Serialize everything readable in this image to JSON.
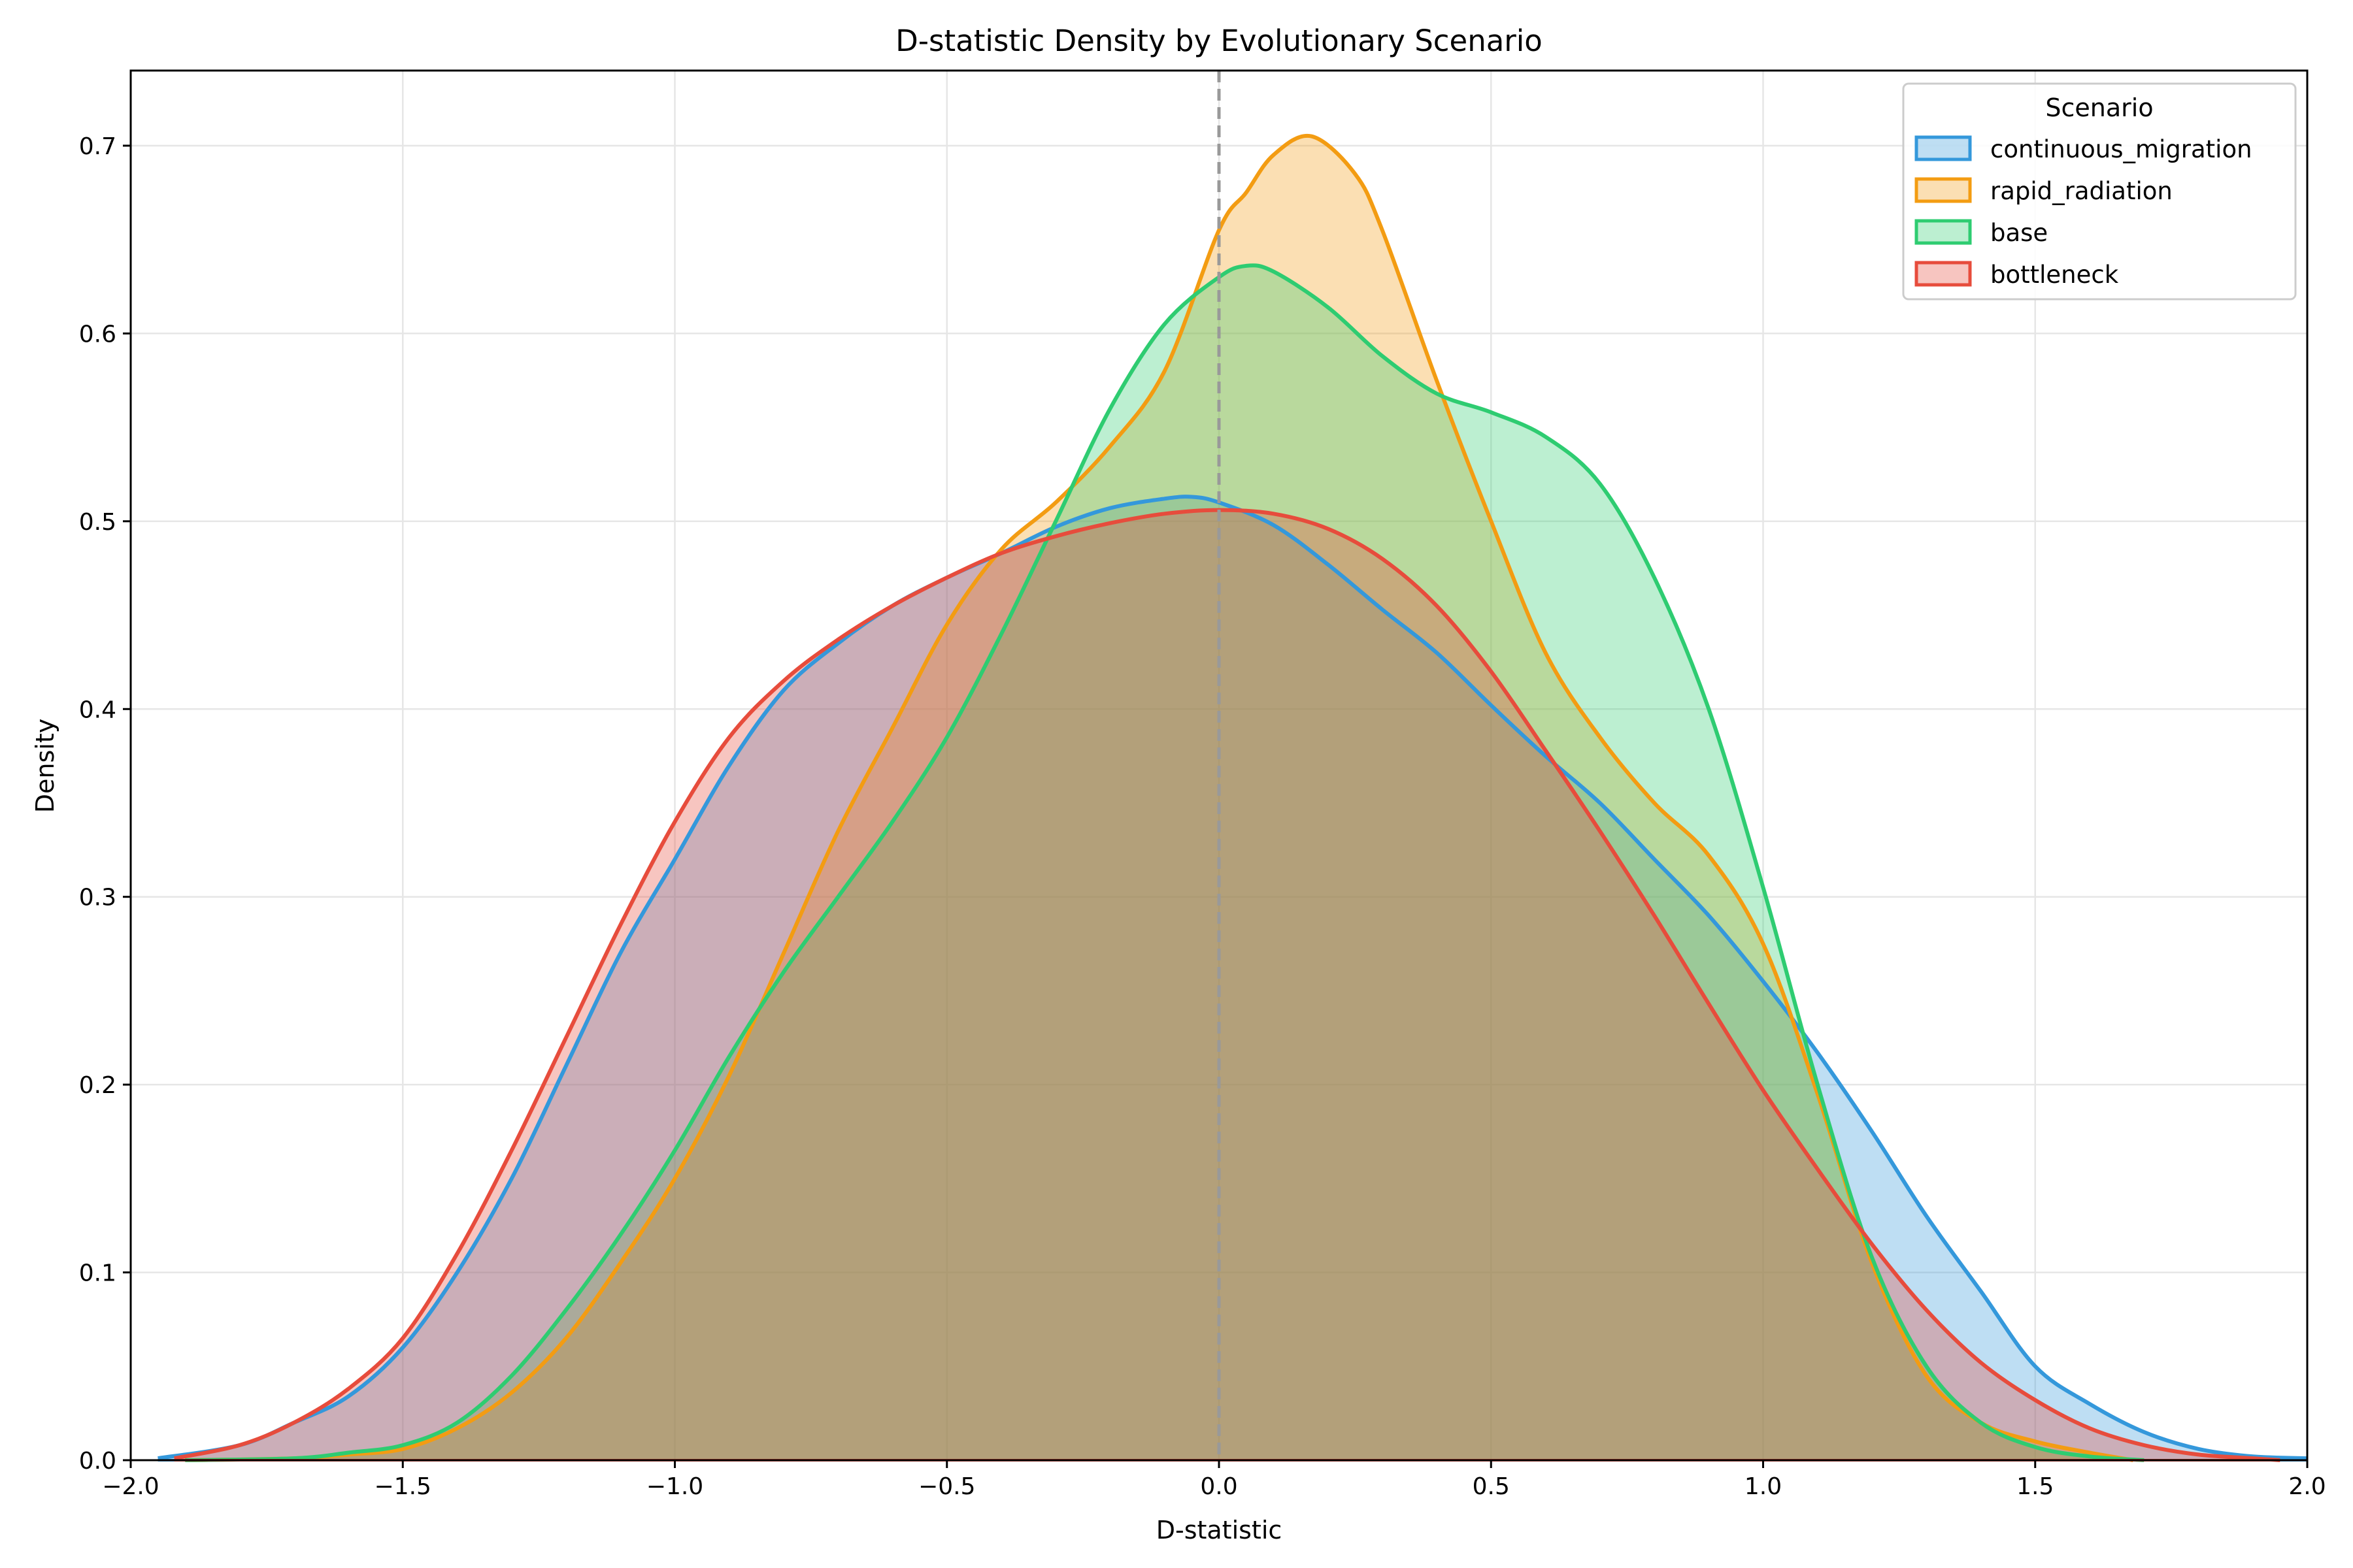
{
  "chart_data": {
    "type": "area",
    "title": "D-statistic Density by Evolutionary Scenario",
    "xlabel": "D-statistic",
    "ylabel": "Density",
    "xlim": [
      -2.0,
      2.0
    ],
    "ylim": [
      0.0,
      0.74
    ],
    "xticks": [
      -2.0,
      -1.5,
      -1.0,
      -0.5,
      0.0,
      0.5,
      1.0,
      1.5,
      2.0
    ],
    "xtick_labels": [
      "−2.0",
      "−1.5",
      "−1.0",
      "−0.5",
      "0.0",
      "0.5",
      "1.0",
      "1.5",
      "2.0"
    ],
    "yticks": [
      0.0,
      0.1,
      0.2,
      0.3,
      0.4,
      0.5,
      0.6,
      0.7
    ],
    "ytick_labels": [
      "0.0",
      "0.1",
      "0.2",
      "0.3",
      "0.4",
      "0.5",
      "0.6",
      "0.7"
    ],
    "grid": true,
    "reference_line_x": 0.0,
    "legend": {
      "title": "Scenario",
      "placement": "top-right"
    },
    "series": [
      {
        "name": "continuous_migration",
        "color": "#3498db",
        "points": [
          [
            -1.95,
            0.001
          ],
          [
            -1.8,
            0.008
          ],
          [
            -1.7,
            0.02
          ],
          [
            -1.6,
            0.034
          ],
          [
            -1.5,
            0.06
          ],
          [
            -1.4,
            0.1
          ],
          [
            -1.3,
            0.15
          ],
          [
            -1.2,
            0.21
          ],
          [
            -1.1,
            0.27
          ],
          [
            -1.0,
            0.32
          ],
          [
            -0.9,
            0.37
          ],
          [
            -0.8,
            0.41
          ],
          [
            -0.7,
            0.435
          ],
          [
            -0.6,
            0.455
          ],
          [
            -0.5,
            0.47
          ],
          [
            -0.4,
            0.483
          ],
          [
            -0.3,
            0.497
          ],
          [
            -0.2,
            0.507
          ],
          [
            -0.1,
            0.512
          ],
          [
            -0.05,
            0.513
          ],
          [
            0.0,
            0.51
          ],
          [
            0.1,
            0.498
          ],
          [
            0.2,
            0.477
          ],
          [
            0.3,
            0.453
          ],
          [
            0.4,
            0.43
          ],
          [
            0.5,
            0.402
          ],
          [
            0.6,
            0.375
          ],
          [
            0.7,
            0.35
          ],
          [
            0.8,
            0.32
          ],
          [
            0.9,
            0.29
          ],
          [
            1.0,
            0.255
          ],
          [
            1.1,
            0.217
          ],
          [
            1.2,
            0.175
          ],
          [
            1.3,
            0.13
          ],
          [
            1.4,
            0.09
          ],
          [
            1.5,
            0.05
          ],
          [
            1.6,
            0.03
          ],
          [
            1.7,
            0.015
          ],
          [
            1.8,
            0.006
          ],
          [
            1.9,
            0.002
          ],
          [
            2.0,
            0.001
          ]
        ]
      },
      {
        "name": "rapid_radiation",
        "color": "#f39c12",
        "points": [
          [
            -1.9,
            0.0
          ],
          [
            -1.7,
            0.001
          ],
          [
            -1.6,
            0.003
          ],
          [
            -1.5,
            0.006
          ],
          [
            -1.4,
            0.017
          ],
          [
            -1.3,
            0.036
          ],
          [
            -1.2,
            0.065
          ],
          [
            -1.1,
            0.105
          ],
          [
            -1.0,
            0.15
          ],
          [
            -0.9,
            0.205
          ],
          [
            -0.8,
            0.27
          ],
          [
            -0.7,
            0.335
          ],
          [
            -0.6,
            0.39
          ],
          [
            -0.5,
            0.445
          ],
          [
            -0.4,
            0.485
          ],
          [
            -0.3,
            0.51
          ],
          [
            -0.2,
            0.54
          ],
          [
            -0.1,
            0.58
          ],
          [
            0.0,
            0.655
          ],
          [
            0.05,
            0.675
          ],
          [
            0.1,
            0.695
          ],
          [
            0.17,
            0.705
          ],
          [
            0.25,
            0.685
          ],
          [
            0.3,
            0.655
          ],
          [
            0.4,
            0.575
          ],
          [
            0.5,
            0.5
          ],
          [
            0.6,
            0.43
          ],
          [
            0.7,
            0.385
          ],
          [
            0.8,
            0.35
          ],
          [
            0.9,
            0.322
          ],
          [
            1.0,
            0.275
          ],
          [
            1.1,
            0.195
          ],
          [
            1.2,
            0.105
          ],
          [
            1.3,
            0.045
          ],
          [
            1.4,
            0.02
          ],
          [
            1.5,
            0.01
          ],
          [
            1.6,
            0.004
          ],
          [
            1.68,
            0.0
          ]
        ]
      },
      {
        "name": "base",
        "color": "#2ecc71",
        "points": [
          [
            -1.9,
            0.0
          ],
          [
            -1.7,
            0.001
          ],
          [
            -1.6,
            0.004
          ],
          [
            -1.5,
            0.008
          ],
          [
            -1.4,
            0.02
          ],
          [
            -1.3,
            0.045
          ],
          [
            -1.2,
            0.08
          ],
          [
            -1.1,
            0.12
          ],
          [
            -1.0,
            0.165
          ],
          [
            -0.9,
            0.215
          ],
          [
            -0.8,
            0.26
          ],
          [
            -0.7,
            0.3
          ],
          [
            -0.6,
            0.34
          ],
          [
            -0.5,
            0.385
          ],
          [
            -0.4,
            0.44
          ],
          [
            -0.3,
            0.5
          ],
          [
            -0.2,
            0.56
          ],
          [
            -0.1,
            0.605
          ],
          [
            0.0,
            0.63
          ],
          [
            0.05,
            0.636
          ],
          [
            0.1,
            0.633
          ],
          [
            0.2,
            0.614
          ],
          [
            0.3,
            0.588
          ],
          [
            0.4,
            0.568
          ],
          [
            0.5,
            0.558
          ],
          [
            0.6,
            0.545
          ],
          [
            0.7,
            0.52
          ],
          [
            0.8,
            0.47
          ],
          [
            0.9,
            0.4
          ],
          [
            1.0,
            0.305
          ],
          [
            1.1,
            0.2
          ],
          [
            1.2,
            0.108
          ],
          [
            1.3,
            0.05
          ],
          [
            1.4,
            0.02
          ],
          [
            1.5,
            0.007
          ],
          [
            1.6,
            0.002
          ],
          [
            1.7,
            0.0
          ]
        ]
      },
      {
        "name": "bottleneck",
        "color": "#e74c3c",
        "points": [
          [
            -1.92,
            0.001
          ],
          [
            -1.8,
            0.008
          ],
          [
            -1.7,
            0.02
          ],
          [
            -1.6,
            0.038
          ],
          [
            -1.5,
            0.065
          ],
          [
            -1.4,
            0.11
          ],
          [
            -1.3,
            0.165
          ],
          [
            -1.2,
            0.225
          ],
          [
            -1.1,
            0.285
          ],
          [
            -1.0,
            0.34
          ],
          [
            -0.9,
            0.385
          ],
          [
            -0.8,
            0.415
          ],
          [
            -0.7,
            0.437
          ],
          [
            -0.6,
            0.455
          ],
          [
            -0.5,
            0.47
          ],
          [
            -0.4,
            0.483
          ],
          [
            -0.3,
            0.492
          ],
          [
            -0.2,
            0.499
          ],
          [
            -0.1,
            0.504
          ],
          [
            0.0,
            0.506
          ],
          [
            0.1,
            0.504
          ],
          [
            0.2,
            0.496
          ],
          [
            0.3,
            0.48
          ],
          [
            0.4,
            0.455
          ],
          [
            0.5,
            0.42
          ],
          [
            0.6,
            0.378
          ],
          [
            0.7,
            0.335
          ],
          [
            0.8,
            0.29
          ],
          [
            0.9,
            0.243
          ],
          [
            1.0,
            0.197
          ],
          [
            1.1,
            0.155
          ],
          [
            1.2,
            0.115
          ],
          [
            1.3,
            0.08
          ],
          [
            1.4,
            0.052
          ],
          [
            1.5,
            0.032
          ],
          [
            1.6,
            0.017
          ],
          [
            1.7,
            0.008
          ],
          [
            1.8,
            0.003
          ],
          [
            1.9,
            0.001
          ],
          [
            1.95,
            0.0
          ]
        ]
      }
    ]
  }
}
